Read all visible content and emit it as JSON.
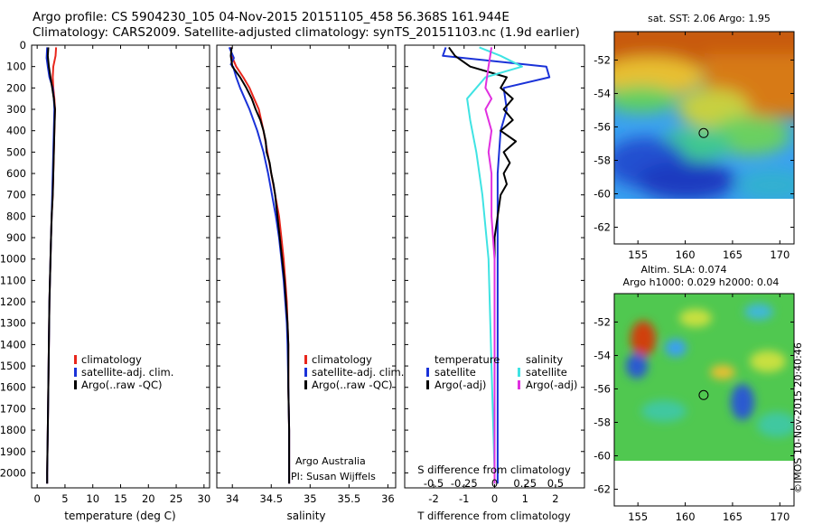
{
  "header": {
    "title_line1": "Argo profile: CS 5904230_105 04-Nov-2015 20151105_458 56.368S 161.944E",
    "title_line2": "Climatology: CARS2009. Satellite-adjusted climatology: synTS_20151103.nc (1.9d earlier)"
  },
  "stamp": "©IMOS 10-Nov-2015 20:40:46",
  "colors": {
    "climatology": "#e8261c",
    "satellite_clim": "#1a32d8",
    "argo": "#000000",
    "sat_salinity": "#3fe3e3",
    "argo_salinity_diff": "#e030e0"
  },
  "chart_data": [
    {
      "type": "line",
      "panel": "temperature",
      "xlabel": "temperature (deg C)",
      "ylabel": "",
      "xlim": [
        -1,
        31
      ],
      "ylim": [
        2070,
        0
      ],
      "xticks": [
        "0",
        "5",
        "10",
        "15",
        "20",
        "25",
        "30"
      ],
      "yticks": [
        "0",
        "100",
        "200",
        "300",
        "400",
        "500",
        "600",
        "700",
        "800",
        "900",
        "1000",
        "1100",
        "1200",
        "1300",
        "1400",
        "1500",
        "1600",
        "1700",
        "1800",
        "1900",
        "2000"
      ],
      "legend": [
        "climatology",
        "satellite-adj. clim.",
        "Argo(..raw -QC)"
      ],
      "series": [
        {
          "name": "climatology",
          "color": "#e8261c",
          "points": [
            [
              3.4,
              10
            ],
            [
              3.3,
              50
            ],
            [
              2.9,
              100
            ],
            [
              2.8,
              150
            ],
            [
              2.9,
              200
            ],
            [
              3.1,
              250
            ],
            [
              3.2,
              300
            ],
            [
              3.1,
              400
            ],
            [
              3.0,
              500
            ],
            [
              2.9,
              600
            ],
            [
              2.8,
              700
            ],
            [
              2.6,
              800
            ],
            [
              2.5,
              900
            ],
            [
              2.4,
              1000
            ],
            [
              2.3,
              1100
            ],
            [
              2.2,
              1200
            ],
            [
              2.1,
              1400
            ],
            [
              2.0,
              1600
            ],
            [
              1.9,
              1800
            ],
            [
              1.8,
              2000
            ],
            [
              1.8,
              2050
            ]
          ]
        },
        {
          "name": "satellite-adj. clim.",
          "color": "#1a32d8",
          "points": [
            [
              1.8,
              10
            ],
            [
              1.7,
              60
            ],
            [
              1.9,
              100
            ],
            [
              2.2,
              150
            ],
            [
              2.8,
              200
            ],
            [
              3.0,
              250
            ],
            [
              3.1,
              300
            ],
            [
              3.0,
              400
            ],
            [
              2.9,
              500
            ],
            [
              2.8,
              600
            ],
            [
              2.7,
              700
            ],
            [
              2.6,
              800
            ],
            [
              2.5,
              900
            ],
            [
              2.4,
              1000
            ],
            [
              2.3,
              1100
            ],
            [
              2.2,
              1200
            ],
            [
              2.1,
              1400
            ],
            [
              2.0,
              1600
            ],
            [
              1.9,
              1800
            ],
            [
              1.8,
              2000
            ],
            [
              1.8,
              2050
            ]
          ]
        },
        {
          "name": "Argo(..raw -QC)",
          "color": "#000000",
          "points": [
            [
              2.0,
              10
            ],
            [
              1.9,
              50
            ],
            [
              2.1,
              100
            ],
            [
              2.4,
              150
            ],
            [
              2.7,
              200
            ],
            [
              3.0,
              250
            ],
            [
              3.2,
              300
            ],
            [
              3.1,
              400
            ],
            [
              3.0,
              500
            ],
            [
              2.9,
              600
            ],
            [
              2.8,
              700
            ],
            [
              2.6,
              800
            ],
            [
              2.5,
              900
            ],
            [
              2.4,
              1000
            ],
            [
              2.3,
              1100
            ],
            [
              2.2,
              1200
            ],
            [
              2.1,
              1400
            ],
            [
              2.0,
              1600
            ],
            [
              1.9,
              1800
            ],
            [
              1.8,
              2000
            ],
            [
              1.8,
              2050
            ]
          ]
        }
      ]
    },
    {
      "type": "line",
      "panel": "salinity",
      "xlabel": "salinity",
      "xlim": [
        33.8,
        36.1
      ],
      "ylim": [
        2070,
        0
      ],
      "xticks": [
        "34",
        "34.5",
        "35",
        "35.5",
        "36"
      ],
      "legend": [
        "climatology",
        "satellite-adj. clim.",
        "Argo(..raw -QC)"
      ],
      "annotation_line1": "Argo Australia",
      "annotation_line2": "PI: Susan Wijffels",
      "series": [
        {
          "name": "climatology",
          "color": "#e8261c",
          "points": [
            [
              33.98,
              10
            ],
            [
              33.99,
              50
            ],
            [
              34.05,
              100
            ],
            [
              34.14,
              150
            ],
            [
              34.22,
              200
            ],
            [
              34.28,
              250
            ],
            [
              34.34,
              300
            ],
            [
              34.4,
              400
            ],
            [
              34.45,
              500
            ],
            [
              34.5,
              600
            ],
            [
              34.55,
              700
            ],
            [
              34.6,
              800
            ],
            [
              34.63,
              900
            ],
            [
              34.66,
              1000
            ],
            [
              34.68,
              1100
            ],
            [
              34.7,
              1200
            ],
            [
              34.71,
              1300
            ],
            [
              34.72,
              1400
            ],
            [
              34.72,
              1600
            ],
            [
              34.73,
              1800
            ],
            [
              34.73,
              2000
            ],
            [
              34.73,
              2050
            ]
          ]
        },
        {
          "name": "satellite-adj. clim.",
          "color": "#1a32d8",
          "points": [
            [
              33.96,
              10
            ],
            [
              34.02,
              60
            ],
            [
              33.98,
              90
            ],
            [
              34.01,
              100
            ],
            [
              34.05,
              150
            ],
            [
              34.1,
              200
            ],
            [
              34.16,
              250
            ],
            [
              34.22,
              300
            ],
            [
              34.32,
              400
            ],
            [
              34.4,
              500
            ],
            [
              34.46,
              600
            ],
            [
              34.51,
              700
            ],
            [
              34.56,
              800
            ],
            [
              34.6,
              900
            ],
            [
              34.63,
              1000
            ],
            [
              34.66,
              1100
            ],
            [
              34.68,
              1200
            ],
            [
              34.7,
              1300
            ],
            [
              34.71,
              1400
            ],
            [
              34.72,
              1600
            ],
            [
              34.73,
              1800
            ],
            [
              34.73,
              2000
            ],
            [
              34.73,
              2050
            ]
          ]
        },
        {
          "name": "Argo(..raw -QC)",
          "color": "#000000",
          "points": [
            [
              33.99,
              10
            ],
            [
              33.98,
              50
            ],
            [
              34.0,
              100
            ],
            [
              34.1,
              150
            ],
            [
              34.18,
              200
            ],
            [
              34.25,
              250
            ],
            [
              34.3,
              300
            ],
            [
              34.36,
              350
            ],
            [
              34.4,
              400
            ],
            [
              34.43,
              450
            ],
            [
              34.44,
              500
            ],
            [
              34.48,
              550
            ],
            [
              34.5,
              600
            ],
            [
              34.53,
              650
            ],
            [
              34.55,
              700
            ],
            [
              34.58,
              800
            ],
            [
              34.61,
              900
            ],
            [
              34.64,
              1000
            ],
            [
              34.67,
              1100
            ],
            [
              34.69,
              1200
            ],
            [
              34.71,
              1300
            ],
            [
              34.72,
              1400
            ],
            [
              34.72,
              1600
            ],
            [
              34.73,
              1800
            ],
            [
              34.73,
              2000
            ],
            [
              34.73,
              2050
            ]
          ]
        }
      ]
    },
    {
      "type": "line",
      "panel": "difference",
      "xlabel": "T difference from climatology",
      "xlabel_top": "S difference from climatology",
      "xlim": [
        -2.95,
        2.95
      ],
      "ylim": [
        2070,
        0
      ],
      "xticks": [
        "-2",
        "-1",
        "0",
        "1",
        "2"
      ],
      "xticks_top": [
        "-0.5",
        "-0.25",
        "0",
        "0.25",
        "0.5"
      ],
      "legend_temperature_title": "temperature",
      "legend_salinity_title": "salinity",
      "legend": [
        "satellite",
        "Argo(-adj)",
        "satellite",
        "Argo(-adj)"
      ],
      "series": [
        {
          "name": "satellite",
          "color": "#1a32d8",
          "points": [
            [
              -1.6,
              10
            ],
            [
              -1.7,
              50
            ],
            [
              1.7,
              100
            ],
            [
              1.8,
              150
            ],
            [
              0.3,
              200
            ],
            [
              0.4,
              300
            ],
            [
              0.2,
              400
            ],
            [
              0.1,
              600
            ],
            [
              0.1,
              800
            ],
            [
              0.1,
              1000
            ],
            [
              0.1,
              1500
            ],
            [
              0.1,
              2000
            ],
            [
              0.1,
              2050
            ]
          ]
        },
        {
          "name": "Argo(-adj)",
          "color": "#000000",
          "points": [
            [
              -1.5,
              10
            ],
            [
              -1.3,
              50
            ],
            [
              -0.8,
              100
            ],
            [
              0.4,
              150
            ],
            [
              0.2,
              200
            ],
            [
              0.6,
              250
            ],
            [
              0.3,
              300
            ],
            [
              0.6,
              350
            ],
            [
              0.2,
              400
            ],
            [
              0.7,
              450
            ],
            [
              0.3,
              500
            ],
            [
              0.5,
              550
            ],
            [
              0.3,
              600
            ],
            [
              0.4,
              650
            ],
            [
              0.2,
              700
            ],
            [
              0.1,
              800
            ],
            [
              0.0,
              900
            ],
            [
              0.0,
              1000
            ],
            [
              0.0,
              1200
            ],
            [
              0.0,
              1500
            ],
            [
              0.0,
              2000
            ],
            [
              0.0,
              2050
            ]
          ]
        },
        {
          "name": "satellite",
          "color": "#3fe3e3",
          "points": [
            [
              -0.5,
              10
            ],
            [
              0.2,
              50
            ],
            [
              0.9,
              100
            ],
            [
              -0.3,
              150
            ],
            [
              -0.9,
              250
            ],
            [
              -0.8,
              350
            ],
            [
              -0.6,
              500
            ],
            [
              -0.4,
              700
            ],
            [
              -0.2,
              1000
            ],
            [
              -0.1,
              1500
            ],
            [
              0.0,
              2000
            ],
            [
              0.0,
              2050
            ]
          ]
        },
        {
          "name": "Argo(-adj)",
          "color": "#e030e0",
          "points": [
            [
              -0.1,
              10
            ],
            [
              -0.2,
              100
            ],
            [
              -0.3,
              200
            ],
            [
              -0.1,
              250
            ],
            [
              -0.3,
              300
            ],
            [
              -0.1,
              400
            ],
            [
              -0.2,
              500
            ],
            [
              -0.1,
              600
            ],
            [
              -0.1,
              800
            ],
            [
              0.0,
              1000
            ],
            [
              0.0,
              1200
            ],
            [
              0.0,
              1500
            ],
            [
              0.0,
              2000
            ],
            [
              0.0,
              2050
            ]
          ]
        }
      ]
    },
    {
      "type": "heatmap",
      "panel": "sst_map",
      "title": "sat. SST: 2.06  Argo: 1.95",
      "xlim": [
        152.5,
        171.5
      ],
      "ylim": [
        -63,
        -50.3
      ],
      "xticks": [
        "155",
        "160",
        "165",
        "170"
      ],
      "yticks": [
        "-52",
        "-54",
        "-56",
        "-58",
        "-60",
        "-62"
      ],
      "argo_position": [
        161.944,
        -56.368
      ]
    },
    {
      "type": "heatmap",
      "panel": "sla_map",
      "title_line1": "Altim. SLA: 0.074",
      "title_line2": "Argo h1000: 0.029 h2000: 0.04",
      "xlim": [
        152.5,
        171.5
      ],
      "ylim": [
        -63,
        -50.3
      ],
      "xticks": [
        "155",
        "160",
        "165",
        "170"
      ],
      "yticks": [
        "-52",
        "-54",
        "-56",
        "-58",
        "-60",
        "-62"
      ],
      "argo_position": [
        161.944,
        -56.368
      ]
    }
  ]
}
